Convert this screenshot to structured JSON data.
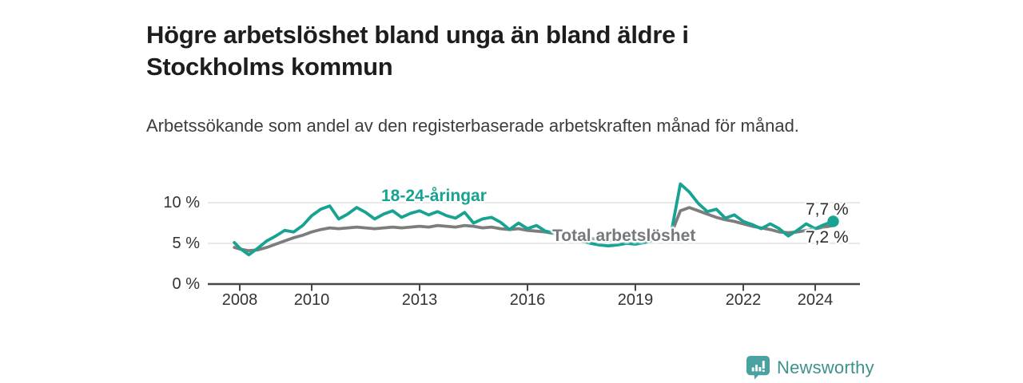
{
  "header": {
    "title": "Högre arbetslöshet bland unga än bland äldre i Stockholms kommun",
    "subtitle": "Arbetssökande som andel av den registerbaserade arbetskraften månad för månad."
  },
  "chart_data": {
    "type": "line",
    "title": "Högre arbetslöshet bland unga än bland äldre i Stockholms kommun",
    "subtitle": "Arbetssökande som andel av den registerbaserade arbetskraften månad för månad.",
    "xlabel": "",
    "ylabel": "",
    "grid": "horizontal gridlines at 5 % and 10 %, legend as inline labels",
    "x_range": [
      2007.1,
      2025.2
    ],
    "ylim": [
      0,
      13.3
    ],
    "x": [
      2007.85,
      2008,
      2008.25,
      2008.5,
      2008.75,
      2009,
      2009.25,
      2009.5,
      2009.75,
      2010,
      2010.25,
      2010.5,
      2010.75,
      2011,
      2011.25,
      2011.5,
      2011.75,
      2012,
      2012.25,
      2012.5,
      2012.75,
      2013,
      2013.25,
      2013.5,
      2013.75,
      2014,
      2014.25,
      2014.5,
      2014.75,
      2015,
      2015.25,
      2015.5,
      2015.75,
      2016,
      2016.25,
      2016.5,
      2016.75,
      2017,
      2017.25,
      2017.5,
      2017.75,
      2018,
      2018.25,
      2018.5,
      2018.75,
      2019,
      2019.25,
      2019.5,
      2019.75,
      2020,
      2020.25,
      2020.5,
      2020.75,
      2021,
      2021.25,
      2021.5,
      2021.75,
      2022,
      2022.25,
      2022.5,
      2022.75,
      2023,
      2023.25,
      2023.5,
      2023.75,
      2024,
      2024.25,
      2024.5
    ],
    "series": [
      {
        "name": "Total arbetslöshet",
        "color": "#7d7d7d",
        "end_value_label": "7,2 %",
        "values": [
          4.5,
          4.3,
          4.1,
          4.2,
          4.5,
          4.9,
          5.3,
          5.7,
          6.0,
          6.4,
          6.7,
          6.9,
          6.8,
          6.9,
          7.0,
          6.9,
          6.8,
          6.9,
          7.0,
          6.9,
          7.0,
          7.1,
          7.0,
          7.2,
          7.1,
          7.0,
          7.2,
          7.1,
          6.9,
          7.0,
          6.8,
          6.7,
          6.8,
          6.6,
          6.5,
          6.4,
          6.2,
          6.1,
          5.9,
          5.7,
          5.6,
          5.5,
          5.4,
          5.5,
          5.6,
          5.7,
          5.8,
          5.9,
          6.0,
          6.2,
          9.0,
          9.4,
          9.0,
          8.6,
          8.2,
          7.9,
          7.7,
          7.4,
          7.1,
          6.9,
          6.7,
          6.4,
          6.3,
          6.4,
          6.6,
          6.8,
          7.0,
          7.2
        ]
      },
      {
        "name": "18-24-åringar",
        "color": "#17a292",
        "end_value_label": "7,7 %",
        "end_dot": true,
        "values": [
          5.1,
          4.4,
          3.6,
          4.4,
          5.3,
          5.9,
          6.6,
          6.4,
          7.2,
          8.4,
          9.2,
          9.6,
          8.0,
          8.6,
          9.4,
          8.8,
          8.0,
          8.6,
          9.0,
          8.2,
          8.7,
          9.0,
          8.5,
          8.9,
          8.4,
          8.1,
          8.8,
          7.5,
          8.0,
          8.2,
          7.6,
          6.7,
          7.5,
          6.8,
          7.2,
          6.5,
          6.3,
          6.0,
          5.6,
          5.3,
          5.0,
          4.8,
          4.7,
          4.8,
          5.0,
          4.9,
          5.1,
          5.4,
          5.9,
          6.4,
          12.3,
          11.3,
          9.9,
          8.9,
          9.2,
          8.1,
          8.5,
          7.7,
          7.3,
          6.8,
          7.4,
          6.8,
          5.9,
          6.6,
          7.4,
          6.8,
          7.3,
          7.7
        ]
      }
    ],
    "y_ticks": [
      {
        "value": 0,
        "label": "0 %"
      },
      {
        "value": 5,
        "label": "5 %"
      },
      {
        "value": 10,
        "label": "10 %"
      }
    ],
    "x_ticks": [
      {
        "value": 2008,
        "label": "2008"
      },
      {
        "value": 2010,
        "label": "2010"
      },
      {
        "value": 2013,
        "label": "2013"
      },
      {
        "value": 2016,
        "label": "2016"
      },
      {
        "value": 2019,
        "label": "2019"
      },
      {
        "value": 2022,
        "label": "2022"
      },
      {
        "value": 2024,
        "label": "2024"
      }
    ],
    "colors": {
      "young_series": "#17a292",
      "total_series": "#7d7d7d",
      "axis": "#474747",
      "gridline": "#d9d9d9"
    }
  },
  "annotations": {
    "young_label": "18-24-åringar",
    "total_label": "Total arbetslöshet",
    "young_end": "7,7 %",
    "total_end": "7,2 %"
  },
  "logo": {
    "text": "Newsworthy",
    "icon": "newsworthy-bar-chart-bubble-icon",
    "icon_color": "#4aa2a0",
    "text_color": "#3f918d"
  }
}
